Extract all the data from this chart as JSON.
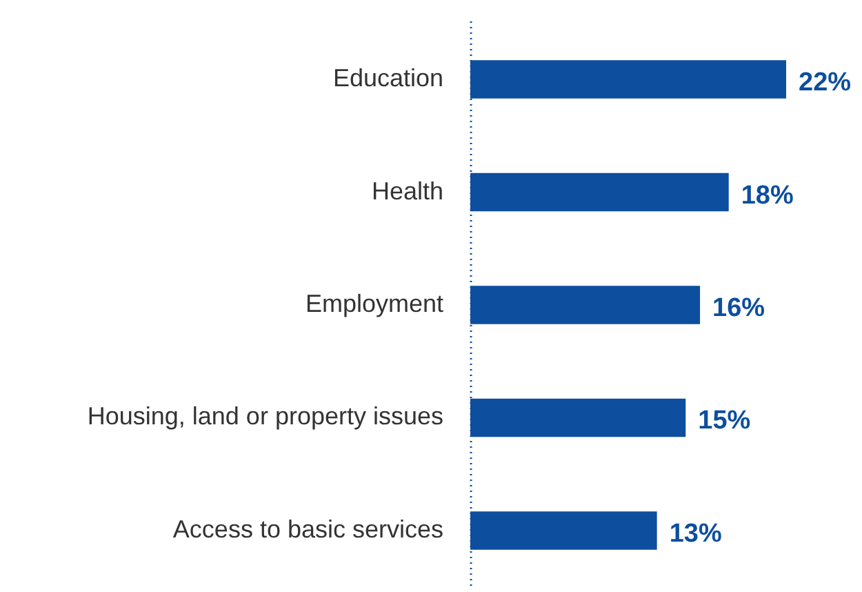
{
  "chart_data": {
    "type": "bar",
    "orientation": "horizontal",
    "categories": [
      "Education",
      "Health",
      "Employment",
      "Housing, land or property issues",
      "Access to basic services"
    ],
    "values": [
      22,
      18,
      16,
      15,
      13
    ],
    "value_labels": [
      "22%",
      "18%",
      "16%",
      "15%",
      "13%"
    ],
    "color": "#0d4e9e"
  }
}
